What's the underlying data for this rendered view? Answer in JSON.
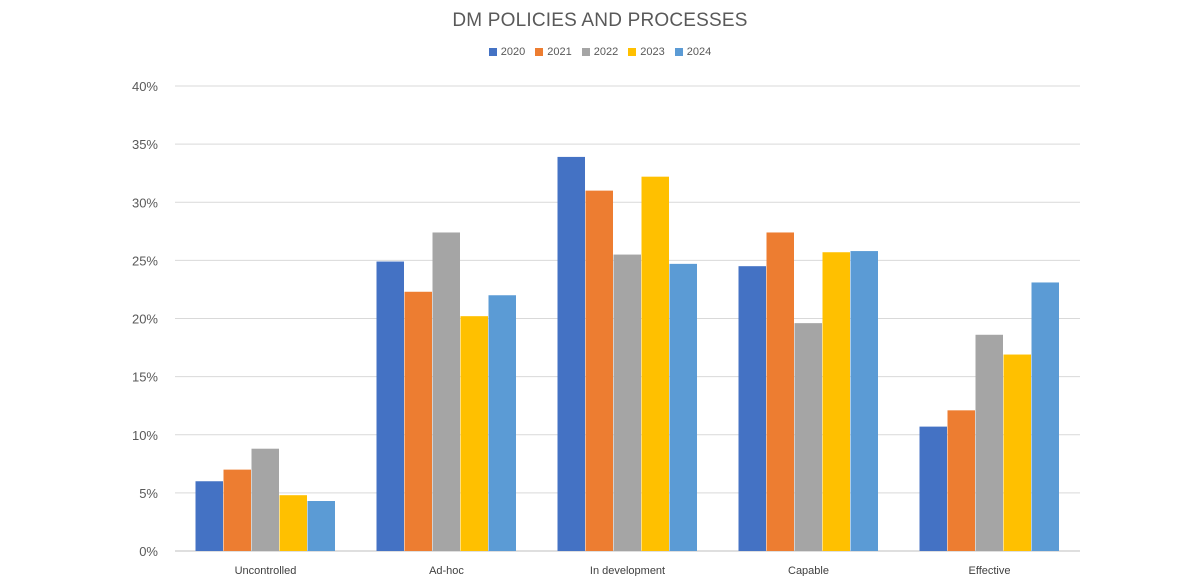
{
  "chart_data": {
    "type": "bar",
    "title": "DM POLICIES AND PROCESSES",
    "categories": [
      "Uncontrolled",
      "Ad-hoc",
      "In development",
      "Capable",
      "Effective"
    ],
    "series": [
      {
        "name": "2020",
        "color": "#4472C4",
        "values": [
          6.0,
          24.9,
          33.9,
          24.5,
          10.7
        ]
      },
      {
        "name": "2021",
        "color": "#ED7D31",
        "values": [
          7.0,
          22.3,
          31.0,
          27.4,
          12.1
        ]
      },
      {
        "name": "2022",
        "color": "#A5A5A5",
        "values": [
          8.8,
          27.4,
          25.5,
          19.6,
          18.6
        ]
      },
      {
        "name": "2023",
        "color": "#FFC000",
        "values": [
          4.8,
          20.2,
          32.2,
          25.7,
          16.9
        ]
      },
      {
        "name": "2024",
        "color": "#5B9BD5",
        "values": [
          4.3,
          22.0,
          24.7,
          25.8,
          23.1
        ]
      }
    ],
    "yticks": [
      "0%",
      "5%",
      "10%",
      "15%",
      "20%",
      "25%",
      "30%",
      "35%",
      "40%"
    ],
    "ylim": [
      0,
      40
    ],
    "xlabel": "",
    "ylabel": "",
    "grid": true,
    "legend_position": "top-center"
  }
}
